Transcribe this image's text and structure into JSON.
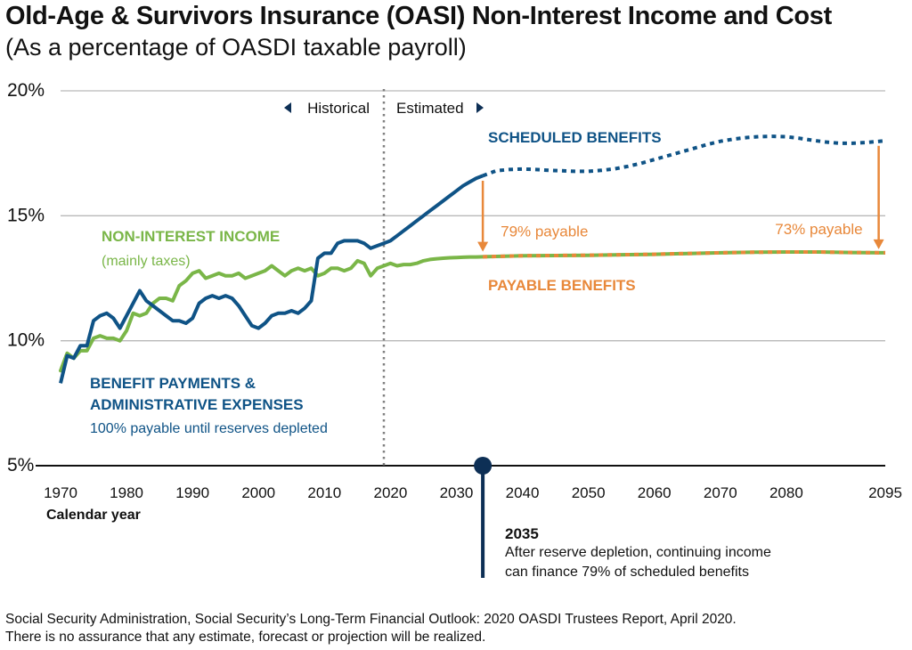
{
  "title": "Old-Age & Survivors Insurance (OASI) Non-Interest Income and Cost",
  "subtitle": "(As a percentage of OASDI taxable payroll)",
  "source": {
    "line1": "Social Security Administration, Social Security’s Long-Term Financial Outlook: 2020 OASDI Trustees Report, April 2020.",
    "line2": "There is no assurance that any estimate, forecast or projection will be realized."
  },
  "colors": {
    "blue": "#0f5386",
    "green": "#7ab648",
    "orange": "#e8883a",
    "navy": "#0d2f55",
    "grid": "#b9b9b9",
    "divider": "#808080"
  },
  "chart_data": {
    "type": "line",
    "xlabel": "Calendar year",
    "xlim": [
      1970,
      2095
    ],
    "ylim": [
      5,
      20
    ],
    "y_ticks": [
      5,
      10,
      15,
      20
    ],
    "y_tick_labels": [
      "5%",
      "10%",
      "15%",
      "20%"
    ],
    "x_ticks": [
      1970,
      1980,
      1990,
      2000,
      2010,
      2020,
      2030,
      2040,
      2050,
      2060,
      2070,
      2080,
      2095
    ],
    "grid": true,
    "divider_year": 2019,
    "historical_label": "Historical",
    "estimated_label": "Estimated",
    "series": [
      {
        "key": "cost",
        "name": "BENEFIT PAYMENTS & ADMINISTRATIVE EXPENSES",
        "note": "100% payable until reserves depleted",
        "x": [
          1970,
          1971,
          1972,
          1973,
          1974,
          1975,
          1976,
          1977,
          1978,
          1979,
          1980,
          1981,
          1982,
          1983,
          1984,
          1985,
          1986,
          1987,
          1988,
          1989,
          1990,
          1991,
          1992,
          1993,
          1994,
          1995,
          1996,
          1997,
          1998,
          1999,
          2000,
          2001,
          2002,
          2003,
          2004,
          2005,
          2006,
          2007,
          2008,
          2009,
          2010,
          2011,
          2012,
          2013,
          2014,
          2015,
          2016,
          2017,
          2018,
          2019,
          2020,
          2021,
          2022,
          2023,
          2024,
          2025,
          2026,
          2027,
          2028,
          2029,
          2030,
          2031,
          2032,
          2033,
          2034
        ],
        "y": [
          8.3,
          9.4,
          9.3,
          9.8,
          9.8,
          10.8,
          11.0,
          11.1,
          10.9,
          10.5,
          11.0,
          11.5,
          12.0,
          11.6,
          11.4,
          11.2,
          11.0,
          10.8,
          10.8,
          10.7,
          10.9,
          11.5,
          11.7,
          11.8,
          11.7,
          11.8,
          11.7,
          11.4,
          11.0,
          10.6,
          10.5,
          10.7,
          11.0,
          11.1,
          11.1,
          11.2,
          11.1,
          11.3,
          11.6,
          13.3,
          13.5,
          13.5,
          13.9,
          14.0,
          14.0,
          14.0,
          13.9,
          13.7,
          13.8,
          13.9,
          14.0,
          14.2,
          14.4,
          14.6,
          14.8,
          15.0,
          15.2,
          15.4,
          15.6,
          15.8,
          16.0,
          16.2,
          16.35,
          16.5,
          16.6
        ]
      },
      {
        "key": "scheduled",
        "name": "SCHEDULED BENEFITS",
        "x": [
          2034,
          2036,
          2038,
          2040,
          2042,
          2044,
          2046,
          2048,
          2050,
          2052,
          2054,
          2056,
          2058,
          2060,
          2062,
          2064,
          2066,
          2068,
          2070,
          2072,
          2074,
          2076,
          2078,
          2080,
          2082,
          2084,
          2086,
          2088,
          2090,
          2092,
          2095
        ],
        "y": [
          16.6,
          16.8,
          16.85,
          16.87,
          16.85,
          16.82,
          16.8,
          16.78,
          16.78,
          16.82,
          16.88,
          16.98,
          17.1,
          17.25,
          17.4,
          17.55,
          17.7,
          17.85,
          17.98,
          18.07,
          18.13,
          18.17,
          18.18,
          18.16,
          18.1,
          18.02,
          17.95,
          17.9,
          17.9,
          17.93,
          18.0
        ]
      },
      {
        "key": "income",
        "name": "NON-INTEREST INCOME",
        "note": "(mainly taxes)",
        "x": [
          1970,
          1971,
          1972,
          1973,
          1974,
          1975,
          1976,
          1977,
          1978,
          1979,
          1980,
          1981,
          1982,
          1983,
          1984,
          1985,
          1986,
          1987,
          1988,
          1989,
          1990,
          1991,
          1992,
          1993,
          1994,
          1995,
          1996,
          1997,
          1998,
          1999,
          2000,
          2001,
          2002,
          2003,
          2004,
          2005,
          2006,
          2007,
          2008,
          2009,
          2010,
          2011,
          2012,
          2013,
          2014,
          2015,
          2016,
          2017,
          2018,
          2019,
          2020,
          2021,
          2022,
          2023,
          2024,
          2025,
          2026,
          2027,
          2028,
          2029,
          2030,
          2031,
          2032,
          2033,
          2034
        ],
        "y": [
          8.8,
          9.5,
          9.3,
          9.6,
          9.6,
          10.1,
          10.2,
          10.1,
          10.1,
          10.0,
          10.4,
          11.1,
          11.0,
          11.1,
          11.5,
          11.7,
          11.7,
          11.6,
          12.2,
          12.4,
          12.7,
          12.8,
          12.5,
          12.6,
          12.7,
          12.6,
          12.6,
          12.7,
          12.5,
          12.6,
          12.7,
          12.8,
          13.0,
          12.8,
          12.6,
          12.8,
          12.9,
          12.8,
          12.9,
          12.6,
          12.7,
          12.9,
          12.9,
          12.8,
          12.9,
          13.2,
          13.1,
          12.6,
          12.9,
          13.0,
          13.1,
          13.0,
          13.05,
          13.05,
          13.1,
          13.2,
          13.25,
          13.28,
          13.3,
          13.32,
          13.33,
          13.34,
          13.35,
          13.35,
          13.36
        ]
      },
      {
        "key": "payable",
        "name": "PAYABLE BENEFITS",
        "x": [
          2034,
          2040,
          2045,
          2050,
          2055,
          2060,
          2065,
          2070,
          2075,
          2080,
          2085,
          2090,
          2095
        ],
        "y": [
          13.36,
          13.4,
          13.41,
          13.42,
          13.44,
          13.46,
          13.49,
          13.52,
          13.54,
          13.55,
          13.55,
          13.53,
          13.52
        ]
      }
    ],
    "annotations": [
      {
        "key": "payable_2035",
        "text": "79% payable",
        "x": 2034,
        "y_from": 16.4,
        "y_to": 13.6
      },
      {
        "key": "payable_2095",
        "text": "73% payable",
        "x": 2094,
        "y_from": 17.8,
        "y_to": 13.7
      }
    ],
    "depletion": {
      "year_label": "2035",
      "marker_x": 2034,
      "marker_y": 5,
      "text_line1": "After reserve depletion, continuing income",
      "text_line2": "can finance 79% of scheduled benefits"
    }
  }
}
